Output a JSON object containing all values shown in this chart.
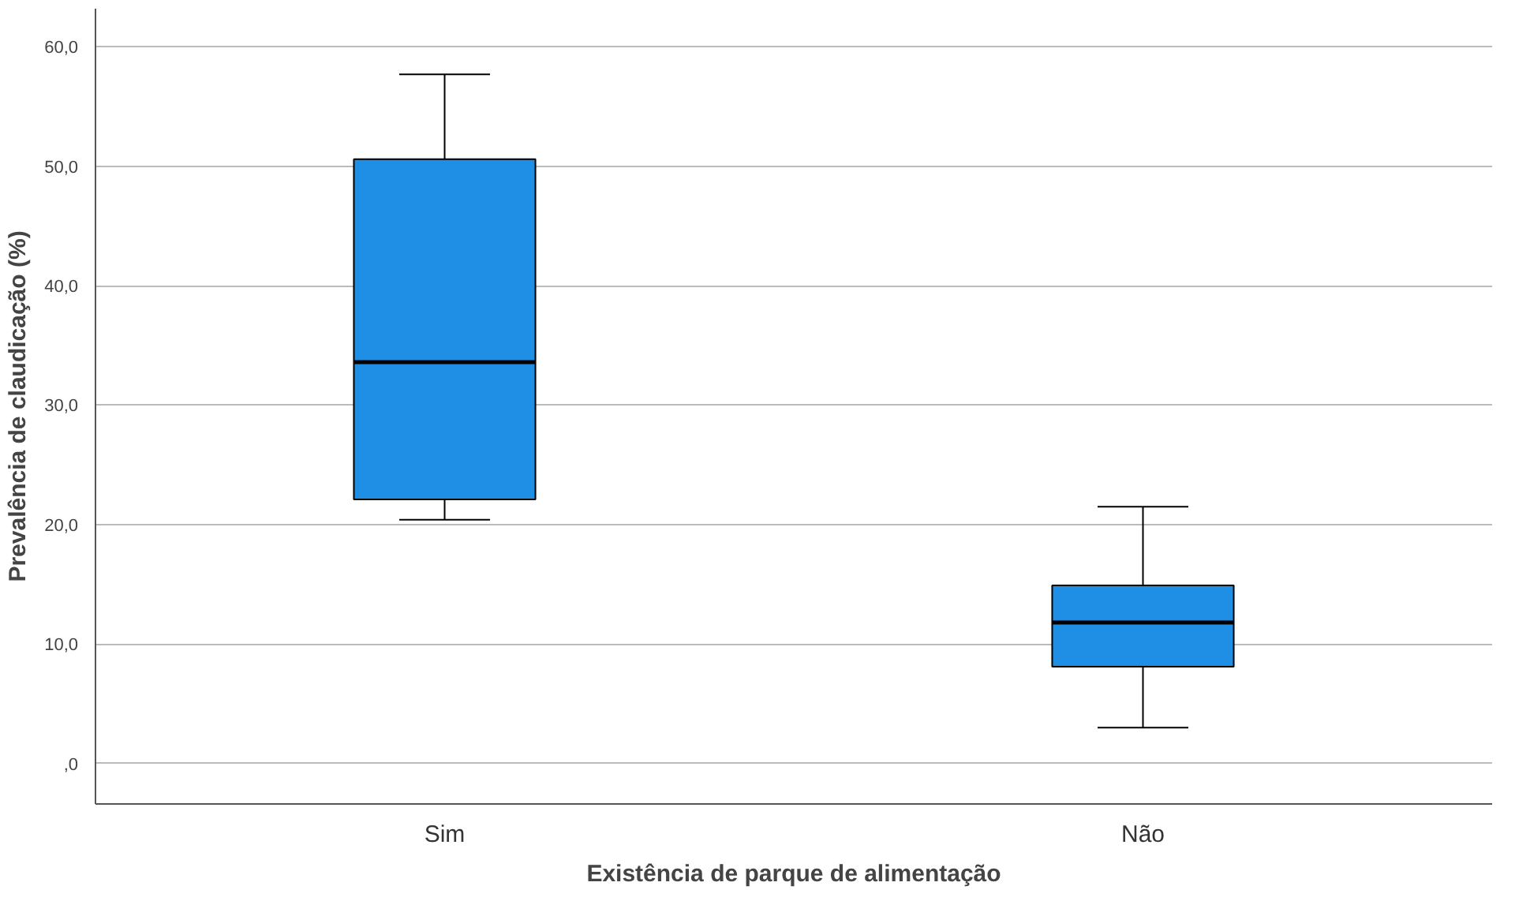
{
  "chart_data": {
    "type": "box",
    "xlabel": "Existência de parque de alimentação",
    "ylabel": "Prevalência de claudicação (%)",
    "categories": [
      "Sim",
      "Não"
    ],
    "series": [
      {
        "color": "#1f8fe5",
        "boxes": [
          {
            "low": 20.4,
            "q1": 22.1,
            "median": 33.6,
            "q3": 50.6,
            "high": 57.7
          },
          {
            "low": 3.0,
            "q1": 8.1,
            "median": 11.8,
            "q3": 14.9,
            "high": 21.5
          }
        ]
      }
    ],
    "ylim": [
      -3.4,
      63.2
    ],
    "yticks": [
      {
        "value": 0,
        "label": ",0"
      },
      {
        "value": 10,
        "label": "10,0"
      },
      {
        "value": 20,
        "label": "20,0"
      },
      {
        "value": 30,
        "label": "30,0"
      },
      {
        "value": 40,
        "label": "40,0"
      },
      {
        "value": 50,
        "label": "50,0"
      },
      {
        "value": 60,
        "label": "60,0"
      }
    ],
    "grid": "y"
  }
}
